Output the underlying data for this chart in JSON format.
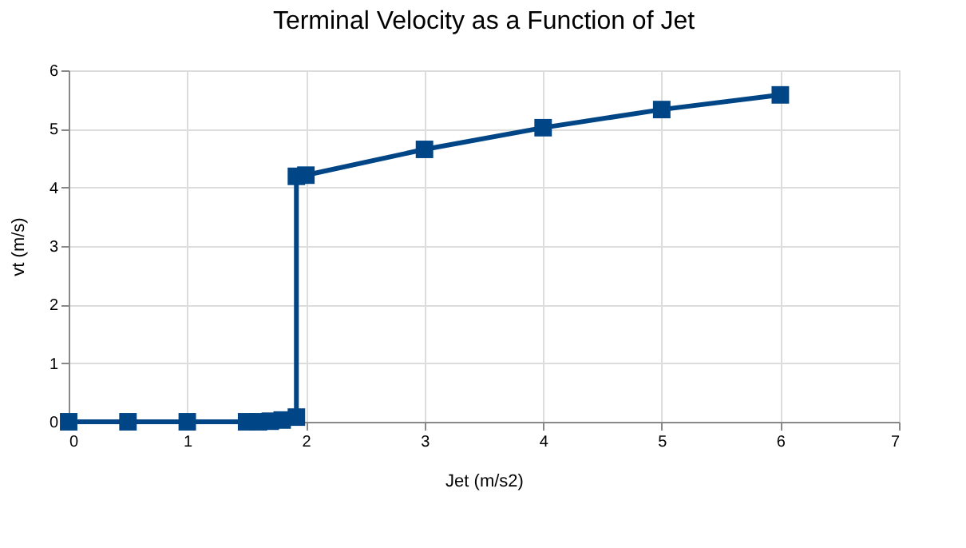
{
  "chart_data": {
    "type": "line",
    "title": "Terminal Velocity as a Function of Jet",
    "xlabel": "Jet (m/s2)",
    "ylabel": "vt (m/s)",
    "x": [
      0,
      0.5,
      1,
      1.5,
      1.6,
      1.7,
      1.8,
      1.92,
      1.92,
      2,
      3,
      4,
      5,
      6
    ],
    "series": [
      {
        "color": "#004586",
        "values": [
          0,
          0,
          0,
          0,
          0,
          0.01,
          0.03,
          0.08,
          4.19,
          4.21,
          4.65,
          5.02,
          5.33,
          5.58
        ]
      }
    ],
    "xlim": [
      0,
      7
    ],
    "xticks": [
      0,
      1,
      2,
      3,
      4,
      5,
      6,
      7
    ],
    "ylim": [
      0,
      6
    ],
    "yticks": [
      0,
      1,
      2,
      3,
      4,
      5,
      6
    ],
    "grid": true,
    "legend": false,
    "marker": "square",
    "line_style": "solid"
  }
}
